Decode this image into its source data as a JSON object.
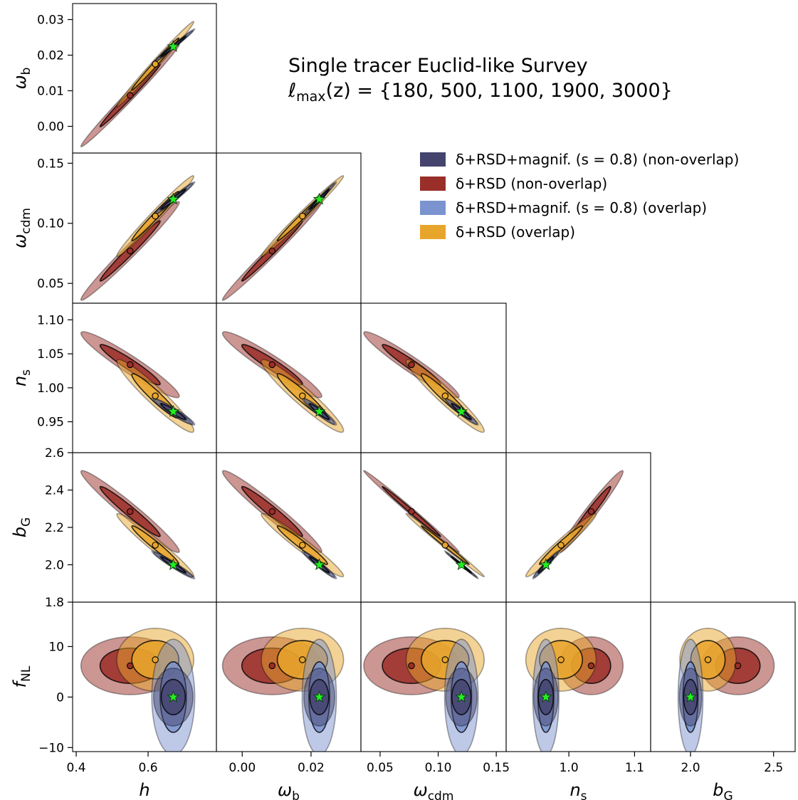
{
  "chart_data": {
    "type": "scatter",
    "title": "Single tracer Euclid-like Survey",
    "subtitle": "ℓmax(z) = {180, 500, 1100, 1900, 3000}",
    "legend_position": "upper-right",
    "parameters": [
      {
        "key": "h",
        "label": "h",
        "sub": "",
        "range": [
          0.39,
          0.79
        ],
        "ticks": [
          0.4,
          0.6
        ],
        "ticklabels": [
          "0.4",
          "0.6"
        ],
        "fiducial": 0.67
      },
      {
        "key": "wb",
        "label": "ω",
        "sub": "b",
        "range": [
          -0.0075,
          0.0345
        ],
        "ticks": [
          0.0,
          0.01,
          0.02,
          0.03
        ],
        "ticklabels": [
          "0.00",
          "0.01",
          "0.02",
          "0.03"
        ],
        "xticks": [
          0.0,
          0.02
        ],
        "xticklabels": [
          "0.00",
          "0.02"
        ],
        "fiducial": 0.0224
      },
      {
        "key": "wcdm",
        "label": "ω",
        "sub": "cdm",
        "range": [
          0.0335,
          0.1585
        ],
        "ticks": [
          0.05,
          0.1,
          0.15
        ],
        "ticklabels": [
          "0.05",
          "0.10",
          "0.15"
        ],
        "fiducial": 0.12
      },
      {
        "key": "ns",
        "label": "n",
        "sub": "s",
        "range": [
          0.9045,
          1.1245
        ],
        "ticks": [
          0.95,
          1.0,
          1.05,
          1.1
        ],
        "ticklabels": [
          "0.95",
          "1.00",
          "1.05",
          "1.10"
        ],
        "xticks": [
          1.0,
          1.1
        ],
        "xticklabels": [
          "1.0",
          "1.1"
        ],
        "fiducial": 0.965
      },
      {
        "key": "bG",
        "label": "b",
        "sub": "G",
        "range": [
          1.8,
          2.6
        ],
        "ticks": [
          1.8,
          2.0,
          2.2,
          2.4,
          2.6
        ],
        "ticklabels": [
          "1.8",
          "2.0",
          "2.2",
          "2.4",
          "2.6"
        ],
        "xticks": [
          2.0,
          2.5
        ],
        "xticklabels": [
          "2.0",
          "2.5"
        ],
        "xrange": [
          1.76,
          2.63
        ],
        "fiducial": 2.0
      },
      {
        "key": "fNL",
        "label": "f",
        "sub": "NL",
        "range": [
          -10.8,
          18.8
        ],
        "ticks": [
          -10,
          0,
          10
        ],
        "ticklabels": [
          "−10",
          "0",
          "10"
        ],
        "fiducial": 0
      }
    ],
    "series": [
      {
        "name": "δ+RSD+magnif. (s = 0.8) (non-overlap)",
        "color": "#44446e",
        "center": {
          "h": 0.67,
          "wb": 0.0224,
          "wcdm": 0.12,
          "ns": 0.965,
          "bG": 2.0,
          "fNL": 0
        },
        "sigma": {
          "h": 0.022,
          "wb": 0.0018,
          "wcdm": 0.0054,
          "ns": 0.0075,
          "bG": 0.027,
          "fNL": 2.3
        },
        "marker": "star"
      },
      {
        "name": "δ+RSD (non-overlap)",
        "color": "#9a2e28",
        "center": {
          "h": 0.55,
          "wb": 0.0087,
          "wcdm": 0.077,
          "ns": 1.034,
          "bG": 2.285,
          "fNL": 6.2
        },
        "sigma": {
          "h": 0.055,
          "wb": 0.0058,
          "wcdm": 0.0165,
          "ns": 0.0195,
          "bG": 0.088,
          "fNL": 2.3
        },
        "marker": "circle"
      },
      {
        "name": "δ+RSD+magnif. (s = 0.8) (overlap)",
        "color": "#7b93cf",
        "center": {
          "h": 0.67,
          "wb": 0.0224,
          "wcdm": 0.12,
          "ns": 0.965,
          "bG": 2.0,
          "fNL": 0
        },
        "sigma": {
          "h": 0.024,
          "wb": 0.002,
          "wcdm": 0.0058,
          "ns": 0.008,
          "bG": 0.03,
          "fNL": 4.6
        },
        "marker": "none"
      },
      {
        "name": "δ+RSD (overlap)",
        "color": "#e8a52c",
        "center": {
          "h": 0.62,
          "wb": 0.0175,
          "wcdm": 0.106,
          "ns": 0.988,
          "bG": 2.105,
          "fNL": 7.4
        },
        "sigma": {
          "h": 0.043,
          "wb": 0.0048,
          "wcdm": 0.0135,
          "ns": 0.0215,
          "bG": 0.068,
          "fNL": 2.5
        },
        "marker": "circle"
      }
    ],
    "correlations": {
      "wb|h": 0.992,
      "wcdm|h": 0.985,
      "wcdm|wb": 0.99,
      "ns|h": -0.95,
      "ns|wb": -0.95,
      "ns|wcdm": -0.96,
      "bG|h": -0.97,
      "bG|wb": -0.97,
      "bG|wcdm": -0.995,
      "bG|ns": 0.975,
      "fNL|h": 0.0,
      "fNL|wb": 0.0,
      "fNL|wcdm": 0.0,
      "fNL|ns": 0.0,
      "fNL|bG": 0.0
    }
  }
}
